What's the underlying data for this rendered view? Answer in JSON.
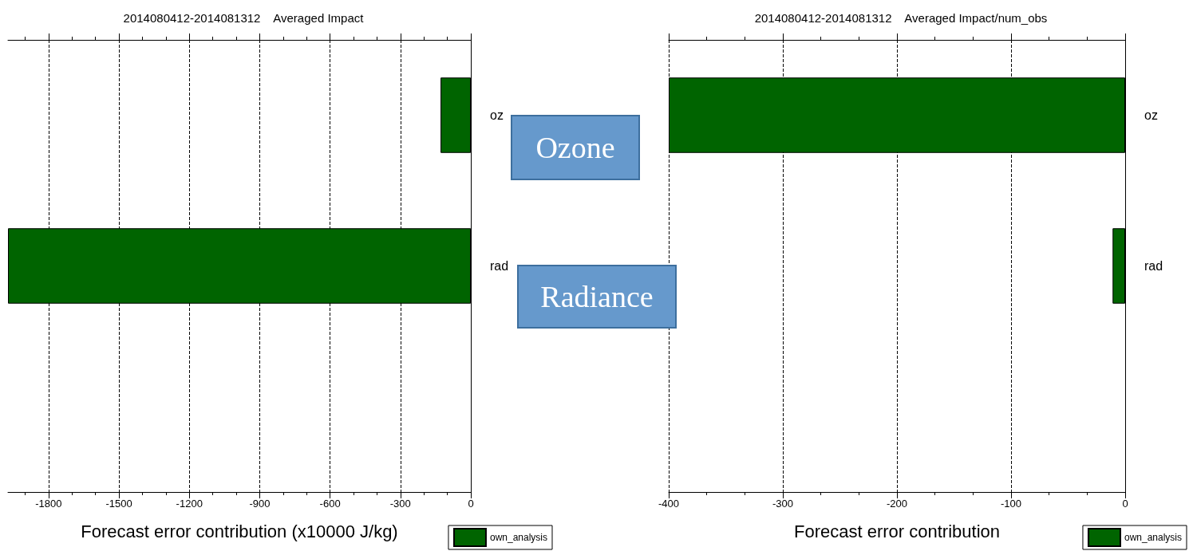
{
  "chart_data": [
    {
      "type": "bar",
      "orientation": "horizontal",
      "title": "2014080412-2014081312    Averaged Impact",
      "xlabel": "Forecast error contribution (x10000 J/kg)",
      "categories": [
        "oz",
        "rad",
        null
      ],
      "series": [
        {
          "name": "own_analysis",
          "color": "#006400",
          "values": [
            -129,
            -1973,
            null
          ]
        }
      ],
      "xlim": [
        -1973,
        0
      ],
      "xticks": [
        -1800,
        -1500,
        -1200,
        -900,
        -600,
        -300,
        0
      ],
      "grid": "x",
      "legend": "bottom right",
      "annotations": [
        "Ozone",
        "Radiance"
      ]
    },
    {
      "type": "bar",
      "orientation": "horizontal",
      "title": "2014080412-2014081312    Averaged Impact/num_obs",
      "xlabel": "Forecast error contribution",
      "categories": [
        "oz",
        "rad",
        null
      ],
      "series": [
        {
          "name": "own_analysis",
          "color": "#006400",
          "values": [
            -400,
            -11,
            null
          ]
        }
      ],
      "xlim": [
        -400,
        0
      ],
      "xticks": [
        -400,
        -300,
        -200,
        -100,
        0
      ],
      "grid": "x",
      "legend": "bottom right"
    }
  ]
}
